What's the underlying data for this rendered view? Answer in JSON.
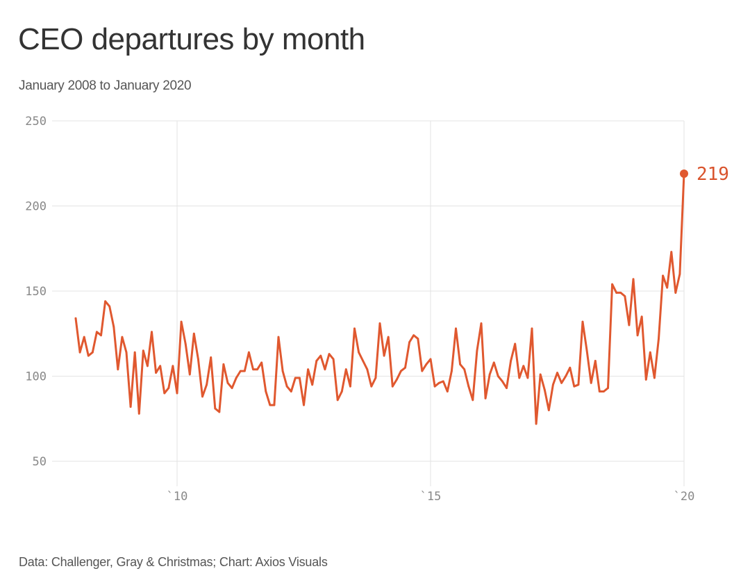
{
  "title": "CEO departures by month",
  "subtitle": "January 2008 to January 2020",
  "source": "Data: Challenger, Gray & Christmas; Chart: Axios Visuals",
  "colors": {
    "line": "#e0582f",
    "grid": "#e3e3e3",
    "text": "#333333",
    "tick": "#888888"
  },
  "chart_data": {
    "type": "line",
    "title": "CEO departures by month",
    "subtitle": "January 2008 to January 2020",
    "xlabel": "",
    "ylabel": "",
    "ylim": [
      50,
      250
    ],
    "xlim": [
      "2008-01",
      "2020-01"
    ],
    "grid": true,
    "y_ticks": [
      "250",
      "200",
      "150",
      "100",
      "50"
    ],
    "y_tick_values": [
      250,
      200,
      150,
      100,
      50
    ],
    "x_ticks": [
      "`10",
      "`15",
      "`20"
    ],
    "x_tick_values": [
      "2010-01",
      "2015-01",
      "2020-01"
    ],
    "end_label": "219",
    "x": [
      "2008-01",
      "2008-02",
      "2008-03",
      "2008-04",
      "2008-05",
      "2008-06",
      "2008-07",
      "2008-08",
      "2008-09",
      "2008-10",
      "2008-11",
      "2008-12",
      "2009-01",
      "2009-02",
      "2009-03",
      "2009-04",
      "2009-05",
      "2009-06",
      "2009-07",
      "2009-08",
      "2009-09",
      "2009-10",
      "2009-11",
      "2009-12",
      "2010-01",
      "2010-02",
      "2010-03",
      "2010-04",
      "2010-05",
      "2010-06",
      "2010-07",
      "2010-08",
      "2010-09",
      "2010-10",
      "2010-11",
      "2010-12",
      "2011-01",
      "2011-02",
      "2011-03",
      "2011-04",
      "2011-05",
      "2011-06",
      "2011-07",
      "2011-08",
      "2011-09",
      "2011-10",
      "2011-11",
      "2011-12",
      "2012-01",
      "2012-02",
      "2012-03",
      "2012-04",
      "2012-05",
      "2012-06",
      "2012-07",
      "2012-08",
      "2012-09",
      "2012-10",
      "2012-11",
      "2012-12",
      "2013-01",
      "2013-02",
      "2013-03",
      "2013-04",
      "2013-05",
      "2013-06",
      "2013-07",
      "2013-08",
      "2013-09",
      "2013-10",
      "2013-11",
      "2013-12",
      "2014-01",
      "2014-02",
      "2014-03",
      "2014-04",
      "2014-05",
      "2014-06",
      "2014-07",
      "2014-08",
      "2014-09",
      "2014-10",
      "2014-11",
      "2014-12",
      "2015-01",
      "2015-02",
      "2015-03",
      "2015-04",
      "2015-05",
      "2015-06",
      "2015-07",
      "2015-08",
      "2015-09",
      "2015-10",
      "2015-11",
      "2015-12",
      "2016-01",
      "2016-02",
      "2016-03",
      "2016-04",
      "2016-05",
      "2016-06",
      "2016-07",
      "2016-08",
      "2016-09",
      "2016-10",
      "2016-11",
      "2016-12",
      "2017-01",
      "2017-02",
      "2017-03",
      "2017-04",
      "2017-05",
      "2017-06",
      "2017-07",
      "2017-08",
      "2017-09",
      "2017-10",
      "2017-11",
      "2017-12",
      "2018-01",
      "2018-02",
      "2018-03",
      "2018-04",
      "2018-05",
      "2018-06",
      "2018-07",
      "2018-08",
      "2018-09",
      "2018-10",
      "2018-11",
      "2018-12",
      "2019-01",
      "2019-02",
      "2019-03",
      "2019-04",
      "2019-05",
      "2019-06",
      "2019-07",
      "2019-08",
      "2019-09",
      "2019-10",
      "2019-11",
      "2019-12",
      "2020-01"
    ],
    "series": [
      {
        "values": [
          134,
          114,
          123,
          112,
          114,
          126,
          124,
          144,
          141,
          129,
          104,
          123,
          114,
          82,
          114,
          78,
          115,
          106,
          126,
          102,
          106,
          90,
          93,
          106,
          90,
          132,
          119,
          101,
          125,
          110,
          88,
          95,
          111,
          81,
          79,
          107,
          96,
          93,
          99,
          103,
          103,
          114,
          104,
          104,
          108,
          91,
          83,
          83,
          123,
          103,
          94,
          91,
          99,
          99,
          83,
          104,
          95,
          109,
          112,
          104,
          113,
          110,
          86,
          91,
          104,
          94,
          128,
          114,
          109,
          104,
          94,
          99,
          131,
          112,
          123,
          94,
          98,
          103,
          105,
          120,
          124,
          122,
          103,
          107,
          110,
          94,
          96,
          97,
          91,
          103,
          128,
          107,
          104,
          94,
          86,
          115,
          131,
          87,
          101,
          108,
          100,
          97,
          93,
          109,
          119,
          99,
          106,
          99,
          128,
          72,
          101,
          92,
          80,
          95,
          102,
          96,
          100,
          105,
          94,
          95,
          132,
          115,
          96,
          109,
          91,
          91,
          93,
          154,
          149,
          149,
          147,
          130,
          157,
          124,
          135,
          98,
          114,
          99,
          122,
          159,
          152,
          173,
          149,
          160,
          219
        ]
      }
    ]
  }
}
